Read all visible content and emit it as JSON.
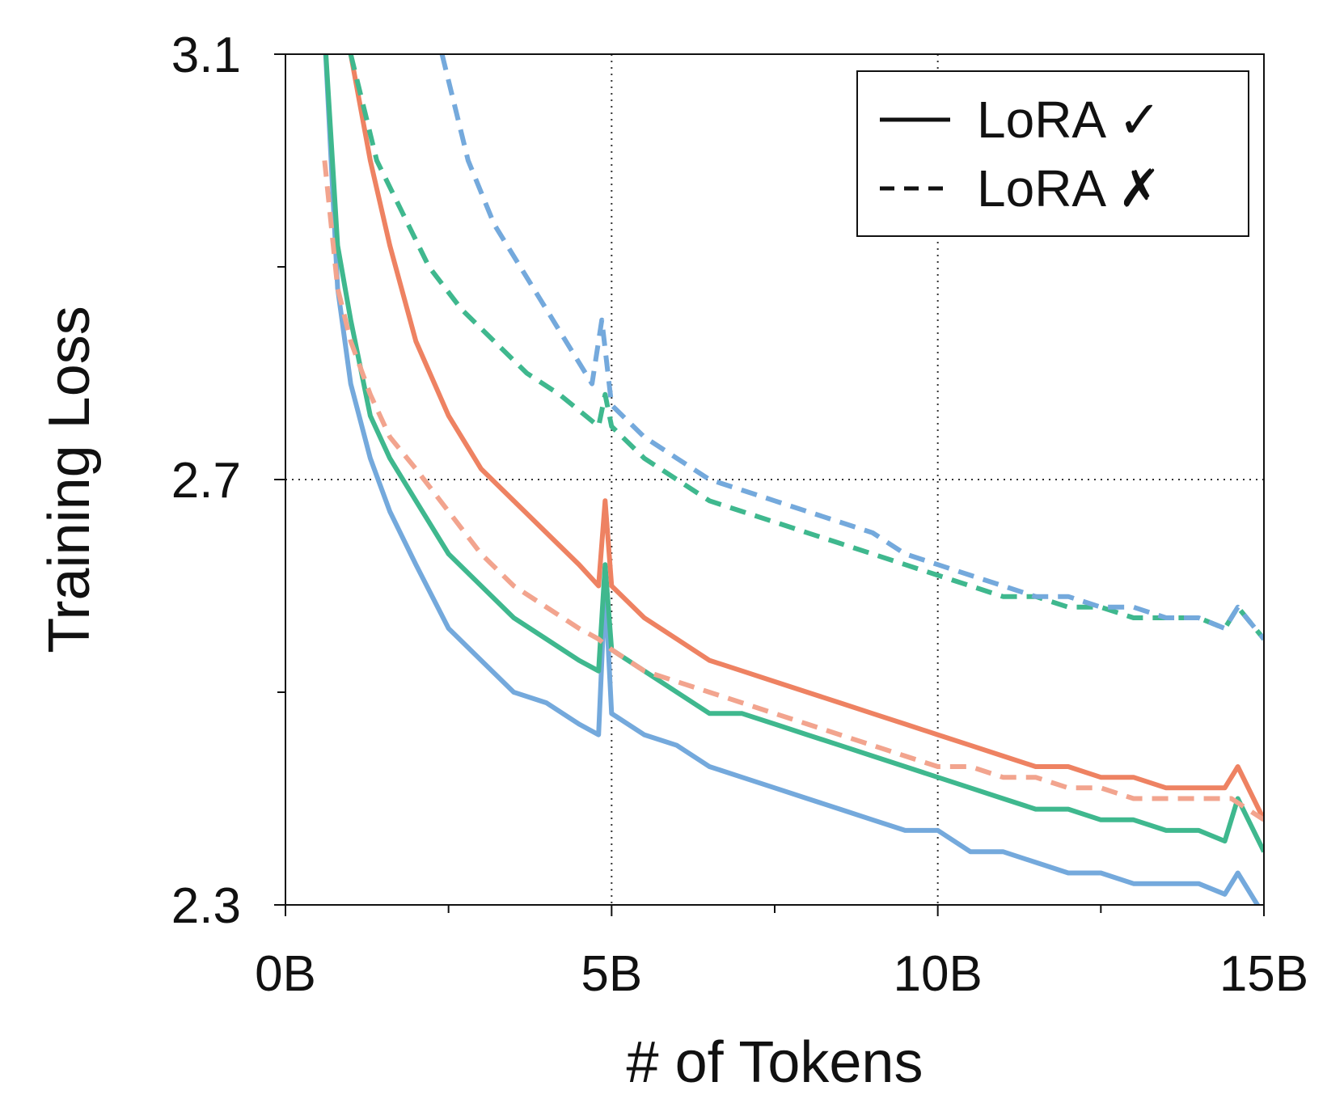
{
  "chart_data": {
    "type": "line",
    "title": "",
    "xlabel": "# of Tokens",
    "ylabel": "Training Loss",
    "xlim": [
      0,
      15
    ],
    "ylim": [
      2.3,
      3.1
    ],
    "x_ticks": [
      0,
      5,
      10,
      15
    ],
    "x_tick_labels": [
      "0B",
      "5B",
      "10B",
      "15B"
    ],
    "x_minor_ticks": [
      2.5,
      7.5,
      12.5
    ],
    "y_ticks": [
      2.3,
      2.7,
      3.1
    ],
    "y_tick_labels": [
      "2.3",
      "2.7",
      "3.1"
    ],
    "y_minor_ticks": [
      2.5,
      2.9
    ],
    "grid": "dotted at 5B, 10B and 2.7",
    "legend": {
      "position": "top-right",
      "entries": [
        {
          "label": "LoRA ✓",
          "style": "solid"
        },
        {
          "label": "LoRA ✗",
          "style": "dashed"
        }
      ]
    },
    "colors": {
      "blue": "#74a9dc",
      "green": "#3fb88e",
      "orange": "#ee8262",
      "orange_light": "#f2a48e"
    },
    "series": [
      {
        "color": "blue",
        "style": "solid",
        "x": [
          0.6,
          0.8,
          1.0,
          1.3,
          1.6,
          2.0,
          2.5,
          3.0,
          3.5,
          4.0,
          4.5,
          4.8,
          4.9,
          5.0,
          5.5,
          6.0,
          6.5,
          7.0,
          7.5,
          8.0,
          8.5,
          9.0,
          9.5,
          10.0,
          10.5,
          11.0,
          11.5,
          12.0,
          12.5,
          13.0,
          13.5,
          14.0,
          14.4,
          14.6,
          15.0
        ],
        "y": [
          3.12,
          2.88,
          2.79,
          2.72,
          2.67,
          2.62,
          2.56,
          2.53,
          2.5,
          2.49,
          2.47,
          2.46,
          2.6,
          2.48,
          2.46,
          2.45,
          2.43,
          2.42,
          2.41,
          2.4,
          2.39,
          2.38,
          2.37,
          2.37,
          2.35,
          2.35,
          2.34,
          2.33,
          2.33,
          2.32,
          2.32,
          2.32,
          2.31,
          2.33,
          2.29
        ]
      },
      {
        "color": "green",
        "style": "solid",
        "x": [
          0.6,
          0.8,
          1.0,
          1.3,
          1.6,
          2.0,
          2.5,
          3.0,
          3.5,
          4.0,
          4.5,
          4.8,
          4.9,
          5.0,
          5.5,
          6.0,
          6.5,
          7.0,
          7.5,
          8.0,
          8.5,
          9.0,
          9.5,
          10.0,
          10.5,
          11.0,
          11.5,
          12.0,
          12.5,
          13.0,
          13.5,
          14.0,
          14.4,
          14.6,
          15.0
        ],
        "y": [
          3.12,
          2.92,
          2.85,
          2.76,
          2.72,
          2.68,
          2.63,
          2.6,
          2.57,
          2.55,
          2.53,
          2.52,
          2.62,
          2.54,
          2.52,
          2.5,
          2.48,
          2.48,
          2.47,
          2.46,
          2.45,
          2.44,
          2.43,
          2.42,
          2.41,
          2.4,
          2.39,
          2.39,
          2.38,
          2.38,
          2.37,
          2.37,
          2.36,
          2.4,
          2.35
        ]
      },
      {
        "color": "orange",
        "style": "solid",
        "x": [
          0.6,
          0.8,
          1.0,
          1.3,
          1.6,
          2.0,
          2.5,
          3.0,
          3.5,
          4.0,
          4.5,
          4.8,
          4.9,
          5.0,
          5.5,
          6.0,
          6.5,
          7.0,
          7.5,
          8.0,
          8.5,
          9.0,
          9.5,
          10.0,
          10.5,
          11.0,
          11.5,
          12.0,
          12.5,
          13.0,
          13.5,
          14.0,
          14.4,
          14.6,
          15.0
        ],
        "y": [
          3.4,
          3.2,
          3.1,
          3.0,
          2.92,
          2.83,
          2.76,
          2.71,
          2.68,
          2.65,
          2.62,
          2.6,
          2.68,
          2.6,
          2.57,
          2.55,
          2.53,
          2.52,
          2.51,
          2.5,
          2.49,
          2.48,
          2.47,
          2.46,
          2.45,
          2.44,
          2.43,
          2.43,
          2.42,
          2.42,
          2.41,
          2.41,
          2.41,
          2.43,
          2.38
        ]
      },
      {
        "color": "orange_light",
        "style": "dashed",
        "x": [
          0.6,
          0.8,
          1.0,
          1.3,
          1.6,
          2.0,
          2.5,
          3.0,
          3.5,
          4.0,
          4.5,
          4.8,
          5.0,
          5.5,
          6.0,
          6.5,
          7.0,
          7.5,
          8.0,
          8.5,
          9.0,
          9.5,
          10.0,
          10.5,
          11.0,
          11.5,
          12.0,
          12.5,
          13.0,
          13.5,
          14.0,
          14.5,
          15.0
        ],
        "y": [
          3.0,
          2.88,
          2.83,
          2.78,
          2.74,
          2.71,
          2.67,
          2.63,
          2.6,
          2.58,
          2.56,
          2.55,
          2.54,
          2.52,
          2.51,
          2.5,
          2.49,
          2.48,
          2.47,
          2.46,
          2.45,
          2.44,
          2.43,
          2.43,
          2.42,
          2.42,
          2.41,
          2.41,
          2.4,
          2.4,
          2.4,
          2.4,
          2.38
        ]
      },
      {
        "color": "green",
        "style": "dashed",
        "x": [
          1.0,
          1.4,
          1.8,
          2.2,
          2.7,
          3.2,
          3.7,
          4.2,
          4.6,
          4.8,
          4.9,
          5.0,
          5.5,
          6.0,
          6.5,
          7.0,
          7.5,
          8.0,
          8.5,
          9.0,
          9.5,
          10.0,
          10.5,
          11.0,
          11.5,
          12.0,
          12.5,
          13.0,
          13.5,
          14.0,
          14.4,
          14.6,
          15.0
        ],
        "y": [
          3.1,
          3.0,
          2.95,
          2.9,
          2.86,
          2.83,
          2.8,
          2.78,
          2.76,
          2.75,
          2.78,
          2.75,
          2.72,
          2.7,
          2.68,
          2.67,
          2.66,
          2.65,
          2.64,
          2.63,
          2.62,
          2.61,
          2.6,
          2.59,
          2.59,
          2.58,
          2.58,
          2.57,
          2.57,
          2.57,
          2.56,
          2.58,
          2.55
        ]
      },
      {
        "color": "blue",
        "style": "dashed",
        "x": [
          2.4,
          2.8,
          3.2,
          3.6,
          4.0,
          4.4,
          4.7,
          4.85,
          5.0,
          5.5,
          6.0,
          6.5,
          7.0,
          7.5,
          8.0,
          8.5,
          9.0,
          9.5,
          10.0,
          10.5,
          11.0,
          11.5,
          12.0,
          12.5,
          13.0,
          13.5,
          14.0,
          14.4,
          14.6,
          15.0
        ],
        "y": [
          3.1,
          3.0,
          2.94,
          2.9,
          2.86,
          2.82,
          2.79,
          2.85,
          2.77,
          2.74,
          2.72,
          2.7,
          2.69,
          2.68,
          2.67,
          2.66,
          2.65,
          2.63,
          2.62,
          2.61,
          2.6,
          2.59,
          2.59,
          2.58,
          2.58,
          2.57,
          2.57,
          2.56,
          2.58,
          2.55
        ]
      }
    ]
  }
}
